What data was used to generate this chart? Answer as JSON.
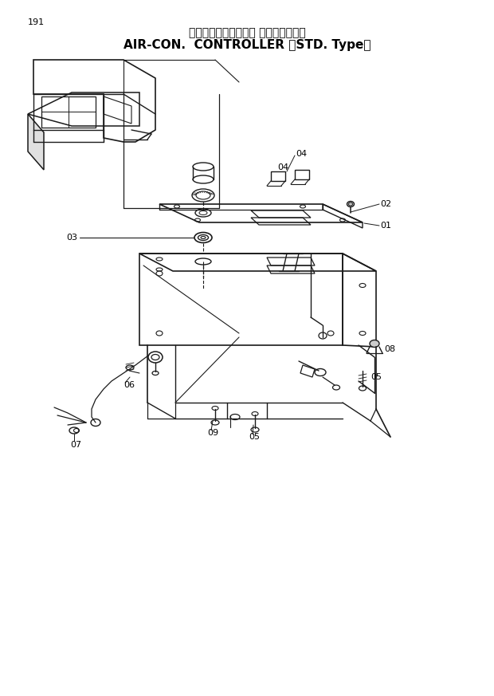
{
  "title_jp": "エアコンコントローラ （内気循環式）",
  "title_en": "AIR-CON.  CONTROLLER 〈STD. Type〉",
  "page_num": "191",
  "bg_color": "#ffffff",
  "lc": "#1a1a1a",
  "tc": "#000000",
  "fig_width": 6.2,
  "fig_height": 8.73,
  "dpi": 100
}
